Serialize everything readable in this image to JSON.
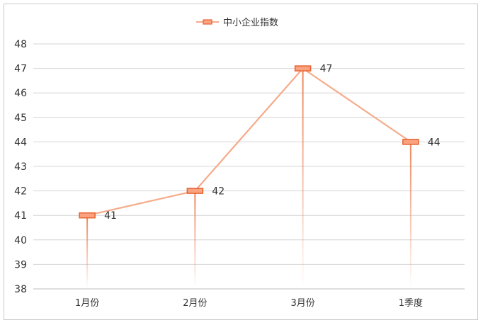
{
  "chart_data": {
    "type": "line",
    "categories": [
      "1月份",
      "2月份",
      "3月份",
      "1季度"
    ],
    "series": [
      {
        "name": "中小企业指数",
        "values": [
          41,
          42,
          47,
          44
        ]
      }
    ],
    "y_ticks": [
      "38",
      "39",
      "40",
      "41",
      "42",
      "43",
      "44",
      "45",
      "46",
      "47",
      "48"
    ],
    "ylim": [
      38,
      48
    ],
    "grid": true,
    "legend": "top-center",
    "colors": {
      "line": "#f5ab8a",
      "marker_fill": "#fba27f",
      "marker_stroke": "#e8612f",
      "drop_line": "#ed8458",
      "grid": "#d4d4d4"
    }
  }
}
